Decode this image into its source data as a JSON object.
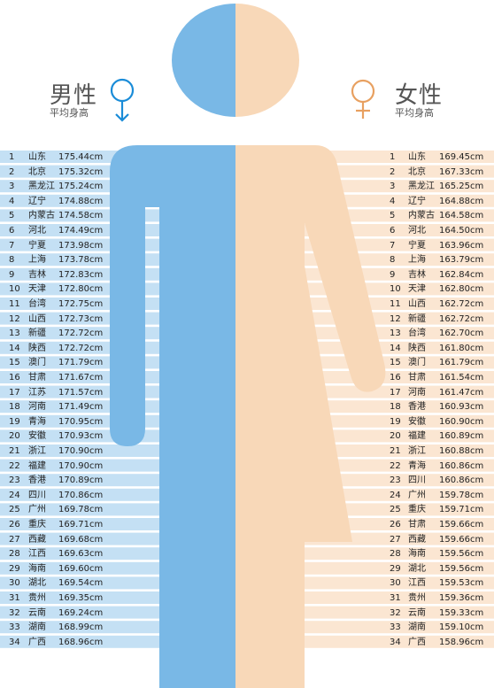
{
  "header": {
    "male_title": "男性",
    "male_subtitle": "平均身高",
    "female_title": "女性",
    "female_subtitle": "平均身高",
    "male_icon": "male-symbol-icon",
    "female_icon": "female-symbol-icon"
  },
  "colors": {
    "male": "#79b8e6",
    "male_stripe": "#c4e0f4",
    "female": "#f8d8b8",
    "female_stripe": "#fbe6d2",
    "male_symbol": "#1a8cd8",
    "female_symbol": "#e8a060"
  },
  "chart_data": [
    {
      "type": "table",
      "unit": "cm",
      "rows": [
        {
          "rank": "1",
          "region": "山东",
          "value": "175.44cm"
        },
        {
          "rank": "2",
          "region": "北京",
          "value": "175.32cm"
        },
        {
          "rank": "3",
          "region": "黑龙江",
          "value": "175.24cm"
        },
        {
          "rank": "4",
          "region": "辽宁",
          "value": "174.88cm"
        },
        {
          "rank": "5",
          "region": "内蒙古",
          "value": "174.58cm"
        },
        {
          "rank": "6",
          "region": "河北",
          "value": "174.49cm"
        },
        {
          "rank": "7",
          "region": "宁夏",
          "value": "173.98cm"
        },
        {
          "rank": "8",
          "region": "上海",
          "value": "173.78cm"
        },
        {
          "rank": "9",
          "region": "吉林",
          "value": "172.83cm"
        },
        {
          "rank": "10",
          "region": "天津",
          "value": "172.80cm"
        },
        {
          "rank": "11",
          "region": "台湾",
          "value": "172.75cm"
        },
        {
          "rank": "12",
          "region": "山西",
          "value": "172.73cm"
        },
        {
          "rank": "13",
          "region": "新疆",
          "value": "172.72cm"
        },
        {
          "rank": "14",
          "region": "陕西",
          "value": "172.72cm"
        },
        {
          "rank": "15",
          "region": "澳门",
          "value": "171.79cm"
        },
        {
          "rank": "16",
          "region": "甘肃",
          "value": "171.67cm"
        },
        {
          "rank": "17",
          "region": "江苏",
          "value": "171.57cm"
        },
        {
          "rank": "18",
          "region": "河南",
          "value": "171.49cm"
        },
        {
          "rank": "19",
          "region": "青海",
          "value": "170.95cm"
        },
        {
          "rank": "20",
          "region": "安徽",
          "value": "170.93cm"
        },
        {
          "rank": "21",
          "region": "浙江",
          "value": "170.90cm"
        },
        {
          "rank": "22",
          "region": "福建",
          "value": "170.90cm"
        },
        {
          "rank": "23",
          "region": "香港",
          "value": "170.89cm"
        },
        {
          "rank": "24",
          "region": "四川",
          "value": "170.86cm"
        },
        {
          "rank": "25",
          "region": "广州",
          "value": "169.78cm"
        },
        {
          "rank": "26",
          "region": "重庆",
          "value": "169.71cm"
        },
        {
          "rank": "27",
          "region": "西藏",
          "value": "169.68cm"
        },
        {
          "rank": "28",
          "region": "江西",
          "value": "169.63cm"
        },
        {
          "rank": "29",
          "region": "海南",
          "value": "169.60cm"
        },
        {
          "rank": "30",
          "region": "湖北",
          "value": "169.54cm"
        },
        {
          "rank": "31",
          "region": "贵州",
          "value": "169.35cm"
        },
        {
          "rank": "32",
          "region": "云南",
          "value": "169.24cm"
        },
        {
          "rank": "33",
          "region": "湖南",
          "value": "168.99cm"
        },
        {
          "rank": "34",
          "region": "广西",
          "value": "168.96cm"
        }
      ]
    },
    {
      "type": "table",
      "unit": "cm",
      "rows": [
        {
          "rank": "1",
          "region": "山东",
          "value": "169.45cm"
        },
        {
          "rank": "2",
          "region": "北京",
          "value": "167.33cm"
        },
        {
          "rank": "3",
          "region": "黑龙江",
          "value": "165.25cm"
        },
        {
          "rank": "4",
          "region": "辽宁",
          "value": "164.88cm"
        },
        {
          "rank": "5",
          "region": "内蒙古",
          "value": "164.58cm"
        },
        {
          "rank": "6",
          "region": "河北",
          "value": "164.50cm"
        },
        {
          "rank": "7",
          "region": "宁夏",
          "value": "163.96cm"
        },
        {
          "rank": "8",
          "region": "上海",
          "value": "163.79cm"
        },
        {
          "rank": "9",
          "region": "吉林",
          "value": "162.84cm"
        },
        {
          "rank": "10",
          "region": "天津",
          "value": "162.80cm"
        },
        {
          "rank": "11",
          "region": "山西",
          "value": "162.72cm"
        },
        {
          "rank": "12",
          "region": "新疆",
          "value": "162.72cm"
        },
        {
          "rank": "13",
          "region": "台湾",
          "value": "162.70cm"
        },
        {
          "rank": "14",
          "region": "陕西",
          "value": "161.80cm"
        },
        {
          "rank": "15",
          "region": "澳门",
          "value": "161.79cm"
        },
        {
          "rank": "16",
          "region": "甘肃",
          "value": "161.54cm"
        },
        {
          "rank": "17",
          "region": "河南",
          "value": "161.47cm"
        },
        {
          "rank": "18",
          "region": "香港",
          "value": "160.93cm"
        },
        {
          "rank": "19",
          "region": "安徽",
          "value": "160.90cm"
        },
        {
          "rank": "20",
          "region": "福建",
          "value": "160.89cm"
        },
        {
          "rank": "21",
          "region": "浙江",
          "value": "160.88cm"
        },
        {
          "rank": "22",
          "region": "青海",
          "value": "160.86cm"
        },
        {
          "rank": "23",
          "region": "四川",
          "value": "160.86cm"
        },
        {
          "rank": "24",
          "region": "广州",
          "value": "159.78cm"
        },
        {
          "rank": "25",
          "region": "重庆",
          "value": "159.71cm"
        },
        {
          "rank": "26",
          "region": "甘肃",
          "value": "159.66cm"
        },
        {
          "rank": "27",
          "region": "西藏",
          "value": "159.66cm"
        },
        {
          "rank": "28",
          "region": "海南",
          "value": "159.56cm"
        },
        {
          "rank": "29",
          "region": "湖北",
          "value": "159.56cm"
        },
        {
          "rank": "30",
          "region": "江西",
          "value": "159.53cm"
        },
        {
          "rank": "31",
          "region": "贵州",
          "value": "159.36cm"
        },
        {
          "rank": "32",
          "region": "云南",
          "value": "159.33cm"
        },
        {
          "rank": "33",
          "region": "湖南",
          "value": "159.10cm"
        },
        {
          "rank": "34",
          "region": "广西",
          "value": "158.96cm"
        }
      ]
    }
  ]
}
